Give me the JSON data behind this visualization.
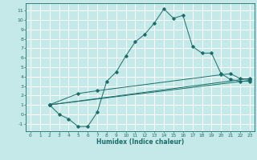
{
  "xlabel": "Humidex (Indice chaleur)",
  "bg_color": "#c5e8e8",
  "grid_color": "#ffffff",
  "line_color": "#1a6e6a",
  "xlim": [
    -0.5,
    23.5
  ],
  "ylim": [
    -1.8,
    11.8
  ],
  "xticks": [
    0,
    1,
    2,
    3,
    4,
    5,
    6,
    7,
    8,
    9,
    10,
    11,
    12,
    13,
    14,
    15,
    16,
    17,
    18,
    19,
    20,
    21,
    22,
    23
  ],
  "yticks": [
    -1,
    0,
    1,
    2,
    3,
    4,
    5,
    6,
    7,
    8,
    9,
    10,
    11
  ],
  "series": [
    {
      "x": [
        2,
        3,
        4,
        5,
        6,
        7,
        8,
        9,
        10,
        11,
        12,
        13,
        14,
        15,
        16,
        17,
        18,
        19,
        20,
        21,
        22,
        23
      ],
      "y": [
        1,
        0,
        -0.5,
        -1.3,
        -1.3,
        0.2,
        3.5,
        4.5,
        6.2,
        7.7,
        8.5,
        9.7,
        11.2,
        10.2,
        10.5,
        7.2,
        6.5,
        6.5,
        4.3,
        3.7,
        3.5,
        3.5
      ]
    },
    {
      "x": [
        2,
        23
      ],
      "y": [
        1.0,
        3.6
      ]
    },
    {
      "x": [
        2,
        23
      ],
      "y": [
        1.0,
        3.8
      ]
    },
    {
      "x": [
        2,
        5,
        7,
        20,
        21,
        22,
        23
      ],
      "y": [
        1.0,
        2.2,
        2.5,
        4.2,
        4.3,
        3.8,
        3.7
      ]
    }
  ]
}
